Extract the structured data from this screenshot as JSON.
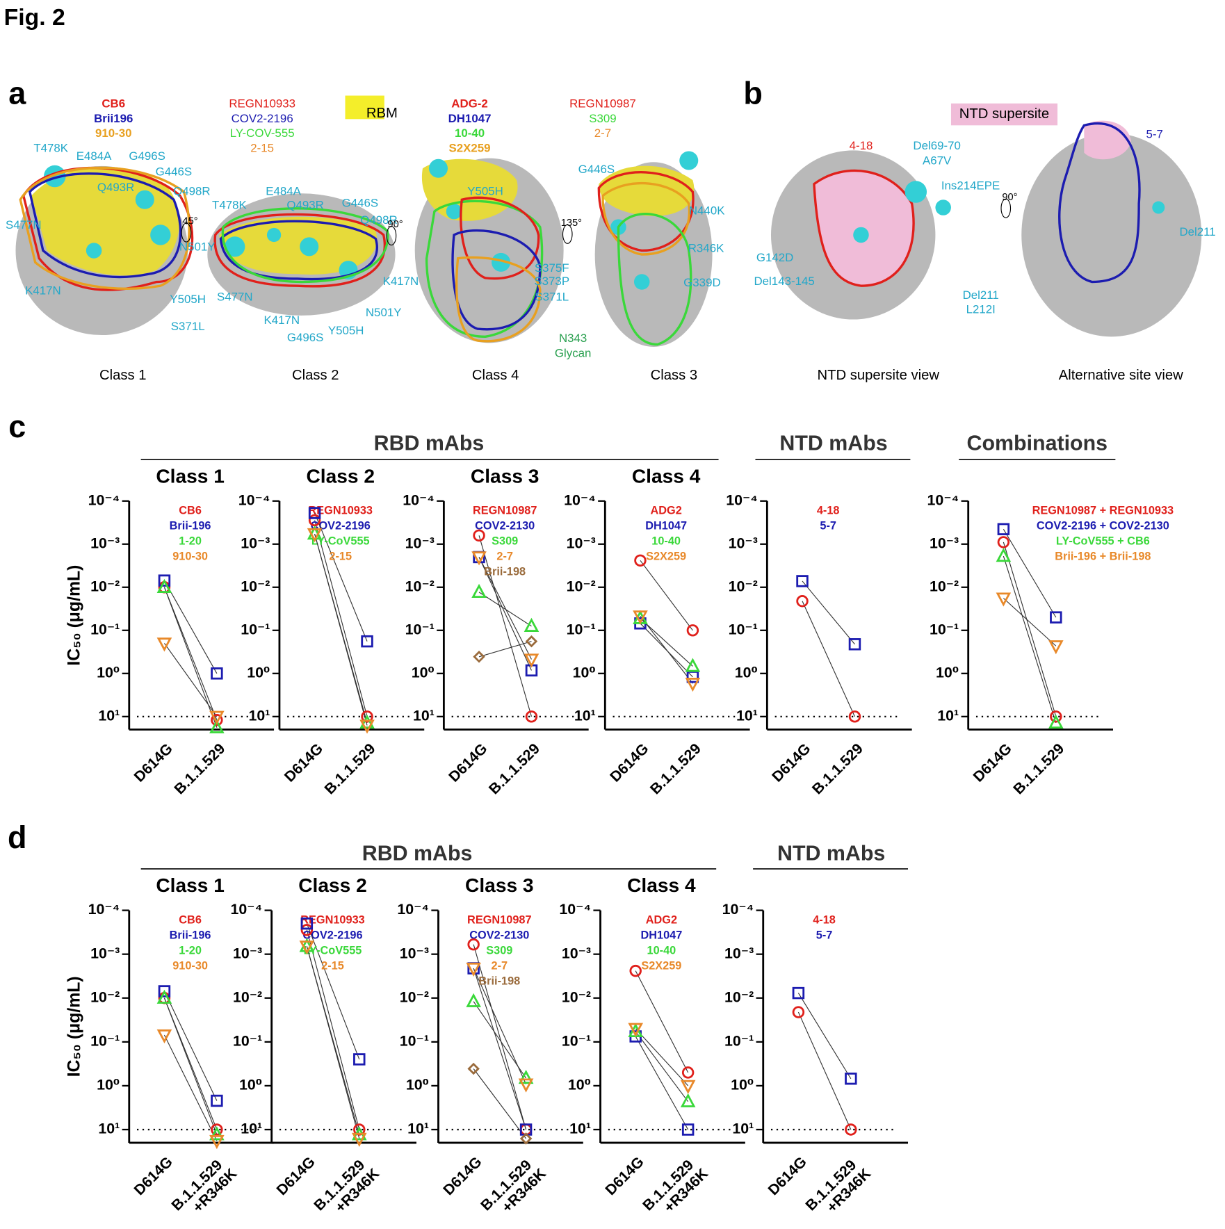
{
  "figure_title": "Fig. 2",
  "panel_a": {
    "label": "a",
    "rbm_label": "RBM",
    "mutation_color": "#22a7c9",
    "glycan_color": "#2aa050",
    "views": [
      {
        "caption": "Class 1",
        "rotation": "45°",
        "antibodies": [
          {
            "name": "CB6",
            "color": "#e0201b"
          },
          {
            "name": "Brii196",
            "color": "#1c1cb0"
          },
          {
            "name": "910-30",
            "color": "#e8a020"
          }
        ],
        "mutations": [
          "T478K",
          "E484A",
          "G496S",
          "G446S",
          "Q498R",
          "Q493R",
          "S477N",
          "N501Y",
          "K417N",
          "Y505H",
          "S371L"
        ]
      },
      {
        "caption": "Class 2",
        "rotation": "90°",
        "antibodies": [
          {
            "name": "REGN10933",
            "color": "#e0201b"
          },
          {
            "name": "COV2-2196",
            "color": "#1c1cb0"
          },
          {
            "name": "LY-COV-555",
            "color": "#3ad83a"
          },
          {
            "name": "2-15",
            "color": "#e8892a"
          }
        ],
        "mutations": [
          "E484A",
          "T478K",
          "Q493R",
          "G446S",
          "Q498R",
          "S477N",
          "K417N",
          "N501Y",
          "G496S",
          "Y505H"
        ]
      },
      {
        "caption": "Class 4",
        "rotation": "135°",
        "antibodies": [
          {
            "name": "ADG-2",
            "color": "#e0201b"
          },
          {
            "name": "DH1047",
            "color": "#1c1cb0"
          },
          {
            "name": "10-40",
            "color": "#3ad83a"
          },
          {
            "name": "S2X259",
            "color": "#e8a020"
          }
        ],
        "mutations": [
          "Y505H",
          "K417N",
          "S375F",
          "S373P",
          "S371L"
        ],
        "glycan": [
          "N343",
          "Glycan"
        ]
      },
      {
        "caption": "Class 3",
        "antibodies": [
          {
            "name": "REGN10987",
            "color": "#e0201b"
          },
          {
            "name": "S309",
            "color": "#3ad83a"
          },
          {
            "name": "2-7",
            "color": "#e8892a"
          }
        ],
        "mutations": [
          "G446S",
          "N440K",
          "R346K",
          "G339D"
        ]
      }
    ]
  },
  "panel_b": {
    "label": "b",
    "supersite_label": "NTD supersite",
    "mutation_color": "#22a7c9",
    "views": [
      {
        "caption": "NTD supersite view",
        "rotation": "90°",
        "antibodies": [
          {
            "name": "4-18",
            "color": "#e0201b"
          }
        ],
        "mutations": [
          "Del69-70",
          "A67V",
          "Ins214EPE",
          "G142D",
          "Del143-145",
          "Del211",
          "L212I"
        ]
      },
      {
        "caption": "Alternative site view",
        "antibodies": [
          {
            "name": "5-7",
            "color": "#1c1cb0"
          }
        ],
        "mutations": [
          "Del211"
        ]
      }
    ]
  },
  "panel_c": {
    "label": "c",
    "headers": [
      "RBD mAbs",
      "NTD mAbs",
      "Combinations"
    ]
  },
  "panel_d": {
    "label": "d",
    "headers": [
      "RBD mAbs",
      "NTD mAbs"
    ]
  },
  "chart_data": [
    {
      "type": "line",
      "title": "Class 1",
      "ylabel": "IC₅₀ (μg/mL)",
      "log_scale": true,
      "reference_line": 10,
      "categories": [
        "D614G",
        "B.1.1.529"
      ],
      "ylim": [
        0.0001,
        20
      ],
      "yticks": [
        {
          "value": 0.0001,
          "label": "10⁻⁴"
        },
        {
          "value": 0.001,
          "label": "10⁻³"
        },
        {
          "value": 0.01,
          "label": "10⁻²"
        },
        {
          "value": 0.1,
          "label": "10⁻¹"
        },
        {
          "value": 1,
          "label": "10⁰"
        },
        {
          "value": 10,
          "label": "10¹"
        }
      ],
      "series": [
        {
          "name": "CB6",
          "color": "#e0201b",
          "marker": "circle",
          "values": [
            0.01,
            12
          ]
        },
        {
          "name": "Brii-196",
          "color": "#1c1cb0",
          "marker": "square",
          "values": [
            0.007,
            1
          ]
        },
        {
          "name": "1-20",
          "color": "#3ad83a",
          "marker": "triangle",
          "values": [
            0.01,
            18
          ]
        },
        {
          "name": "910-30",
          "color": "#e8892a",
          "marker": "triangle-down",
          "values": [
            0.2,
            10
          ]
        }
      ]
    },
    {
      "type": "line",
      "title": "Class 2",
      "log_scale": true,
      "reference_line": 10,
      "categories": [
        "D614G",
        "B.1.1.529"
      ],
      "ylim": [
        0.0001,
        20
      ],
      "yticks": [
        {
          "value": 0.0001,
          "label": "10⁻⁴"
        },
        {
          "value": 0.001,
          "label": "10⁻³"
        },
        {
          "value": 0.01,
          "label": "10⁻²"
        },
        {
          "value": 0.1,
          "label": "10⁻¹"
        },
        {
          "value": 1,
          "label": "10⁰"
        },
        {
          "value": 10,
          "label": "10¹"
        }
      ],
      "series": [
        {
          "name": "REGN10933",
          "color": "#e0201b",
          "marker": "circle",
          "values": [
            0.00028,
            10
          ]
        },
        {
          "name": "COV2-2196",
          "color": "#1c1cb0",
          "marker": "square",
          "values": [
            0.00019,
            0.18
          ]
        },
        {
          "name": "LY-CoV555",
          "color": "#3ad83a",
          "marker": "triangle",
          "values": [
            0.00058,
            14
          ]
        },
        {
          "name": "2-15",
          "color": "#e8892a",
          "marker": "triangle-down",
          "values": [
            0.00058,
            16
          ]
        }
      ]
    },
    {
      "type": "line",
      "title": "Class 3",
      "log_scale": true,
      "reference_line": 10,
      "categories": [
        "D614G",
        "B.1.1.529"
      ],
      "ylim": [
        0.0001,
        20
      ],
      "yticks": [
        {
          "value": 0.0001,
          "label": "10⁻⁴"
        },
        {
          "value": 0.001,
          "label": "10⁻³"
        },
        {
          "value": 0.01,
          "label": "10⁻²"
        },
        {
          "value": 0.1,
          "label": "10⁻¹"
        },
        {
          "value": 1,
          "label": "10⁰"
        },
        {
          "value": 10,
          "label": "10¹"
        }
      ],
      "series": [
        {
          "name": "REGN10987",
          "color": "#e0201b",
          "marker": "circle",
          "values": [
            0.00063,
            10
          ]
        },
        {
          "name": "COV2-2130",
          "color": "#1c1cb0",
          "marker": "square",
          "values": [
            0.002,
            0.85
          ]
        },
        {
          "name": "S309",
          "color": "#3ad83a",
          "marker": "triangle",
          "values": [
            0.013,
            0.08
          ]
        },
        {
          "name": "2-7",
          "color": "#e8892a",
          "marker": "triangle-down",
          "values": [
            0.002,
            0.47
          ]
        },
        {
          "name": "Brii-198",
          "color": "#9a6b3c",
          "marker": "diamond",
          "values": [
            0.41,
            0.18
          ]
        }
      ]
    },
    {
      "type": "line",
      "title": "Class 4",
      "log_scale": true,
      "reference_line": 10,
      "categories": [
        "D614G",
        "B.1.1.529"
      ],
      "ylim": [
        0.0001,
        20
      ],
      "yticks": [
        {
          "value": 0.0001,
          "label": "10⁻⁴"
        },
        {
          "value": 0.001,
          "label": "10⁻³"
        },
        {
          "value": 0.01,
          "label": "10⁻²"
        },
        {
          "value": 0.1,
          "label": "10⁻¹"
        },
        {
          "value": 1,
          "label": "10⁰"
        },
        {
          "value": 10,
          "label": "10¹"
        }
      ],
      "series": [
        {
          "name": "ADG2",
          "color": "#e0201b",
          "marker": "circle",
          "values": [
            0.0024,
            0.1
          ]
        },
        {
          "name": "DH1047",
          "color": "#1c1cb0",
          "marker": "square",
          "values": [
            0.069,
            1.2
          ]
        },
        {
          "name": "10-40",
          "color": "#3ad83a",
          "marker": "triangle",
          "values": [
            0.053,
            0.68
          ]
        },
        {
          "name": "S2X259",
          "color": "#e8892a",
          "marker": "triangle-down",
          "values": [
            0.047,
            1.7
          ]
        }
      ]
    },
    {
      "type": "line",
      "log_scale": true,
      "reference_line": 10,
      "categories": [
        "D614G",
        "B.1.1.529"
      ],
      "ylim": [
        0.0001,
        20
      ],
      "yticks": [
        {
          "value": 0.0001,
          "label": "10⁻⁴"
        },
        {
          "value": 0.001,
          "label": "10⁻³"
        },
        {
          "value": 0.01,
          "label": "10⁻²"
        },
        {
          "value": 0.1,
          "label": "10⁻¹"
        },
        {
          "value": 1,
          "label": "10⁰"
        },
        {
          "value": 10,
          "label": "10¹"
        }
      ],
      "series": [
        {
          "name": "4-18",
          "color": "#e0201b",
          "marker": "circle",
          "values": [
            0.021,
            10
          ]
        },
        {
          "name": "5-7",
          "color": "#1c1cb0",
          "marker": "square",
          "values": [
            0.0072,
            0.21
          ]
        }
      ]
    },
    {
      "type": "line",
      "log_scale": true,
      "reference_line": 10,
      "categories": [
        "D614G",
        "B.1.1.529"
      ],
      "ylim": [
        0.0001,
        20
      ],
      "yticks": [
        {
          "value": 0.0001,
          "label": "10⁻⁴"
        },
        {
          "value": 0.001,
          "label": "10⁻³"
        },
        {
          "value": 0.01,
          "label": "10⁻²"
        },
        {
          "value": 0.1,
          "label": "10⁻¹"
        },
        {
          "value": 1,
          "label": "10⁰"
        },
        {
          "value": 10,
          "label": "10¹"
        }
      ],
      "series": [
        {
          "name": "REGN10987 + REGN10933",
          "color": "#e0201b",
          "marker": "circle",
          "values": [
            0.0009,
            10
          ]
        },
        {
          "name": "COV2-2196 + COV2-2130",
          "color": "#1c1cb0",
          "marker": "square",
          "values": [
            0.00045,
            0.05
          ]
        },
        {
          "name": "LY-CoV555 + CB6",
          "color": "#3ad83a",
          "marker": "triangle",
          "values": [
            0.0019,
            14
          ]
        },
        {
          "name": "Brii-196 + Brii-198",
          "color": "#e8892a",
          "marker": "triangle-down",
          "values": [
            0.018,
            0.23
          ]
        }
      ]
    },
    {
      "type": "line",
      "title": "Class 1",
      "ylabel": "IC₅₀ (μg/mL)",
      "log_scale": true,
      "reference_line": 10,
      "categories": [
        "D614G",
        "B.1.1.529 +R346K"
      ],
      "ylim": [
        0.0001,
        20
      ],
      "yticks": [
        {
          "value": 0.0001,
          "label": "10⁻⁴"
        },
        {
          "value": 0.001,
          "label": "10⁻³"
        },
        {
          "value": 0.01,
          "label": "10⁻²"
        },
        {
          "value": 0.1,
          "label": "10⁻¹"
        },
        {
          "value": 1,
          "label": "10⁰"
        },
        {
          "value": 10,
          "label": "10¹"
        }
      ],
      "series": [
        {
          "name": "CB6",
          "color": "#e0201b",
          "marker": "circle",
          "values": [
            0.01,
            10
          ]
        },
        {
          "name": "Brii-196",
          "color": "#1c1cb0",
          "marker": "square",
          "values": [
            0.007,
            2.2
          ]
        },
        {
          "name": "1-20",
          "color": "#3ad83a",
          "marker": "triangle",
          "values": [
            0.01,
            13
          ]
        },
        {
          "name": "910-30",
          "color": "#e8892a",
          "marker": "triangle-down",
          "values": [
            0.07,
            18
          ]
        }
      ]
    },
    {
      "type": "line",
      "title": "Class 2",
      "log_scale": true,
      "reference_line": 10,
      "categories": [
        "D614G",
        "B.1.1.529 +R346K"
      ],
      "ylim": [
        0.0001,
        20
      ],
      "yticks": [
        {
          "value": 0.0001,
          "label": "10⁻⁴"
        },
        {
          "value": 0.001,
          "label": "10⁻³"
        },
        {
          "value": 0.01,
          "label": "10⁻²"
        },
        {
          "value": 0.1,
          "label": "10⁻¹"
        },
        {
          "value": 1,
          "label": "10⁰"
        },
        {
          "value": 10,
          "label": "10¹"
        }
      ],
      "series": [
        {
          "name": "REGN10933",
          "color": "#e0201b",
          "marker": "circle",
          "values": [
            0.00028,
            10
          ]
        },
        {
          "name": "COV2-2196",
          "color": "#1c1cb0",
          "marker": "square",
          "values": [
            0.0002,
            0.25
          ]
        },
        {
          "name": "LY-CoV555",
          "color": "#3ad83a",
          "marker": "triangle",
          "values": [
            0.00066,
            13
          ]
        },
        {
          "name": "2-15",
          "color": "#e8892a",
          "marker": "triangle-down",
          "values": [
            0.00066,
            16
          ]
        }
      ]
    },
    {
      "type": "line",
      "title": "Class 3",
      "log_scale": true,
      "reference_line": 10,
      "categories": [
        "D614G",
        "B.1.1.529 +R346K"
      ],
      "ylim": [
        0.0001,
        20
      ],
      "yticks": [
        {
          "value": 0.0001,
          "label": "10⁻⁴"
        },
        {
          "value": 0.001,
          "label": "10⁻³"
        },
        {
          "value": 0.01,
          "label": "10⁻²"
        },
        {
          "value": 0.1,
          "label": "10⁻¹"
        },
        {
          "value": 1,
          "label": "10⁰"
        },
        {
          "value": 10,
          "label": "10¹"
        }
      ],
      "series": [
        {
          "name": "REGN10987",
          "color": "#e0201b",
          "marker": "circle",
          "values": [
            0.0006,
            10
          ]
        },
        {
          "name": "COV2-2130",
          "color": "#1c1cb0",
          "marker": "square",
          "values": [
            0.0021,
            10
          ]
        },
        {
          "name": "S309",
          "color": "#3ad83a",
          "marker": "triangle",
          "values": [
            0.012,
            0.67
          ]
        },
        {
          "name": "2-7",
          "color": "#e8892a",
          "marker": "triangle-down",
          "values": [
            0.0021,
            0.92
          ]
        },
        {
          "name": "Brii-198",
          "color": "#9a6b3c",
          "marker": "diamond",
          "values": [
            0.41,
            16
          ]
        }
      ]
    },
    {
      "type": "line",
      "title": "Class 4",
      "log_scale": true,
      "reference_line": 10,
      "categories": [
        "D614G",
        "B.1.1.529 +R346K"
      ],
      "ylim": [
        0.0001,
        20
      ],
      "yticks": [
        {
          "value": 0.0001,
          "label": "10⁻⁴"
        },
        {
          "value": 0.001,
          "label": "10⁻³"
        },
        {
          "value": 0.01,
          "label": "10⁻²"
        },
        {
          "value": 0.1,
          "label": "10⁻¹"
        },
        {
          "value": 1,
          "label": "10⁰"
        },
        {
          "value": 10,
          "label": "10¹"
        }
      ],
      "series": [
        {
          "name": "ADG2",
          "color": "#e0201b",
          "marker": "circle",
          "values": [
            0.0024,
            0.5
          ]
        },
        {
          "name": "DH1047",
          "color": "#1c1cb0",
          "marker": "square",
          "values": [
            0.075,
            10
          ]
        },
        {
          "name": "10-40",
          "color": "#3ad83a",
          "marker": "triangle",
          "values": [
            0.058,
            2.3
          ]
        },
        {
          "name": "S2X259",
          "color": "#e8892a",
          "marker": "triangle-down",
          "values": [
            0.05,
            1
          ]
        }
      ]
    },
    {
      "type": "line",
      "log_scale": true,
      "reference_line": 10,
      "categories": [
        "D614G",
        "B.1.1.529 +R346K"
      ],
      "ylim": [
        0.0001,
        20
      ],
      "yticks": [
        {
          "value": 0.0001,
          "label": "10⁻⁴"
        },
        {
          "value": 0.001,
          "label": "10⁻³"
        },
        {
          "value": 0.01,
          "label": "10⁻²"
        },
        {
          "value": 0.1,
          "label": "10⁻¹"
        },
        {
          "value": 1,
          "label": "10⁰"
        },
        {
          "value": 10,
          "label": "10¹"
        }
      ],
      "series": [
        {
          "name": "4-18",
          "color": "#e0201b",
          "marker": "circle",
          "values": [
            0.021,
            10
          ]
        },
        {
          "name": "5-7",
          "color": "#1c1cb0",
          "marker": "square",
          "values": [
            0.0077,
            0.69
          ]
        }
      ]
    }
  ]
}
